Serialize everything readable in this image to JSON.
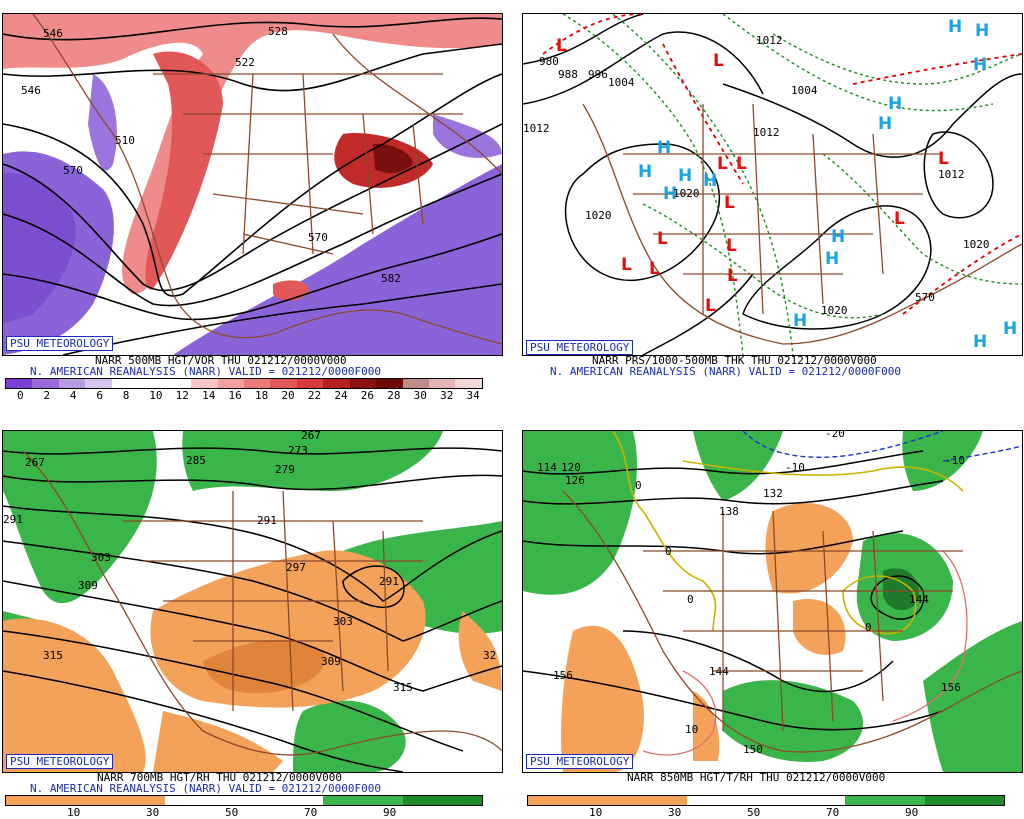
{
  "branding": "PSU METEOROLOGY",
  "panels": {
    "p1": {
      "caption1": "NARR 500MB HGT/VOR THU 021212/0000V000",
      "caption2": "N. AMERICAN REANALYSIS (NARR) VALID = 021212/0000F000",
      "scale_labels": [
        "0",
        "2",
        "4",
        "6",
        "8",
        "10",
        "12",
        "14",
        "16",
        "18",
        "20",
        "22",
        "24",
        "26",
        "28",
        "30",
        "32",
        "34"
      ],
      "scale_colors": [
        "#7b3fd6",
        "#9a6ad9",
        "#b89be3",
        "#d6c6ee",
        "#ffffff",
        "#ffffff",
        "#ffffff",
        "#f7c7c7",
        "#f2a0a0",
        "#eb7a7a",
        "#e25858",
        "#d63a3a",
        "#b42020",
        "#8a1010",
        "#6e0a0a",
        "#c08a8a",
        "#e2b4b4",
        "#f3d6d6"
      ],
      "map_labels": [
        "546",
        "528",
        "522",
        "510",
        "570",
        "570",
        "582"
      ]
    },
    "p2": {
      "caption1": "NARR PRS/1000-500MB THK THU 021212/0000V000",
      "caption2": "N. AMERICAN REANALYSIS (NARR) VALID = 021212/0000F000",
      "map_labels": [
        "980",
        "988",
        "996",
        "1004",
        "1012",
        "1012",
        "1020",
        "1020",
        "1020",
        "1012",
        "1004",
        "1020",
        "1012",
        "570"
      ]
    },
    "p3": {
      "caption1": "NARR 700MB HGT/RH THU 021212/0000V000",
      "caption2": "N. AMERICAN REANALYSIS (NARR) VALID = 021212/0000F000",
      "scale_labels": [
        "10",
        "30",
        "50",
        "70",
        "90"
      ],
      "map_labels": [
        "267",
        "273",
        "279",
        "285",
        "291",
        "297",
        "303",
        "309",
        "315",
        "303",
        "309",
        "315",
        "291",
        "297",
        "32"
      ]
    },
    "p4": {
      "caption1": "NARR 850MB HGT/T/RH THU 021212/0000V000",
      "scale_labels": [
        "10",
        "30",
        "50",
        "70",
        "90"
      ],
      "map_labels": [
        "114",
        "120",
        "126",
        "132",
        "138",
        "144",
        "150",
        "156",
        "156",
        "-10",
        "-10",
        "-20",
        "0",
        "0",
        "0",
        "0",
        "10",
        "144"
      ]
    }
  },
  "colors": {
    "branding_blue": "#1a2bb8",
    "dry_orange": "#f4a25a",
    "moist_green": "#3ab54a",
    "coast_brown": "#8b4a2b"
  }
}
